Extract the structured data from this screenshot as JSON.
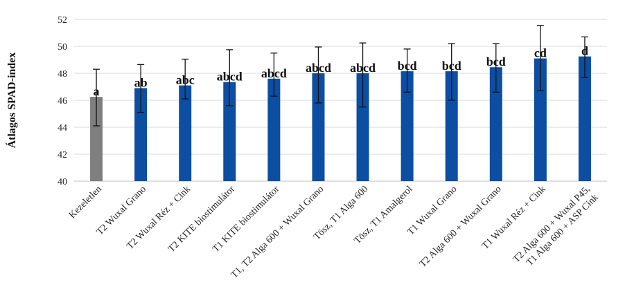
{
  "chart_data": {
    "type": "bar",
    "ylabel": "Átlagos SPAD-index",
    "xlabel": "",
    "ylim": [
      40,
      52
    ],
    "yticks": [
      40,
      42,
      44,
      46,
      48,
      50,
      52
    ],
    "grid": true,
    "categories": [
      "Kezeletlen",
      "T2 Wuxal Grano",
      "T2 Wuxal Réz + Cink",
      "T2 KITE biostimulátor",
      "T1 KITE biostimulátor",
      "T1, T2 Alga 600 + Wuxal Grano",
      "Tösz, T1 Alga 600",
      "Tösz, T1 Amalgerol",
      "T1 Wuxal Grano",
      "T2 Alga 600 + Wuxal Grano",
      "T1 Wuxal Réz + Cink",
      "T2 Alga 600 + Wuxal P45, T1 Alga 600 + ASP Cink"
    ],
    "values": [
      46.25,
      46.9,
      47.1,
      47.35,
      47.6,
      48.0,
      48.0,
      48.15,
      48.15,
      48.45,
      49.1,
      49.25
    ],
    "error_low": [
      44.1,
      45.1,
      46.1,
      45.6,
      46.3,
      45.8,
      45.5,
      46.6,
      46.0,
      46.6,
      46.7,
      47.7
    ],
    "error_high": [
      48.3,
      48.65,
      49.05,
      49.75,
      49.5,
      49.95,
      50.25,
      49.8,
      50.2,
      50.2,
      51.55,
      50.7
    ],
    "significance": [
      "a",
      "ab",
      "abc",
      "abcd",
      "abcd",
      "abcd",
      "abcd",
      "bcd",
      "bcd",
      "bcd",
      "cd",
      "d"
    ],
    "colors": {
      "control": "#7f7f7f",
      "treatment": "#0b4ea2",
      "grid": "#d9d9d9",
      "axis": "#bfbfbf",
      "error": "#111111"
    }
  }
}
